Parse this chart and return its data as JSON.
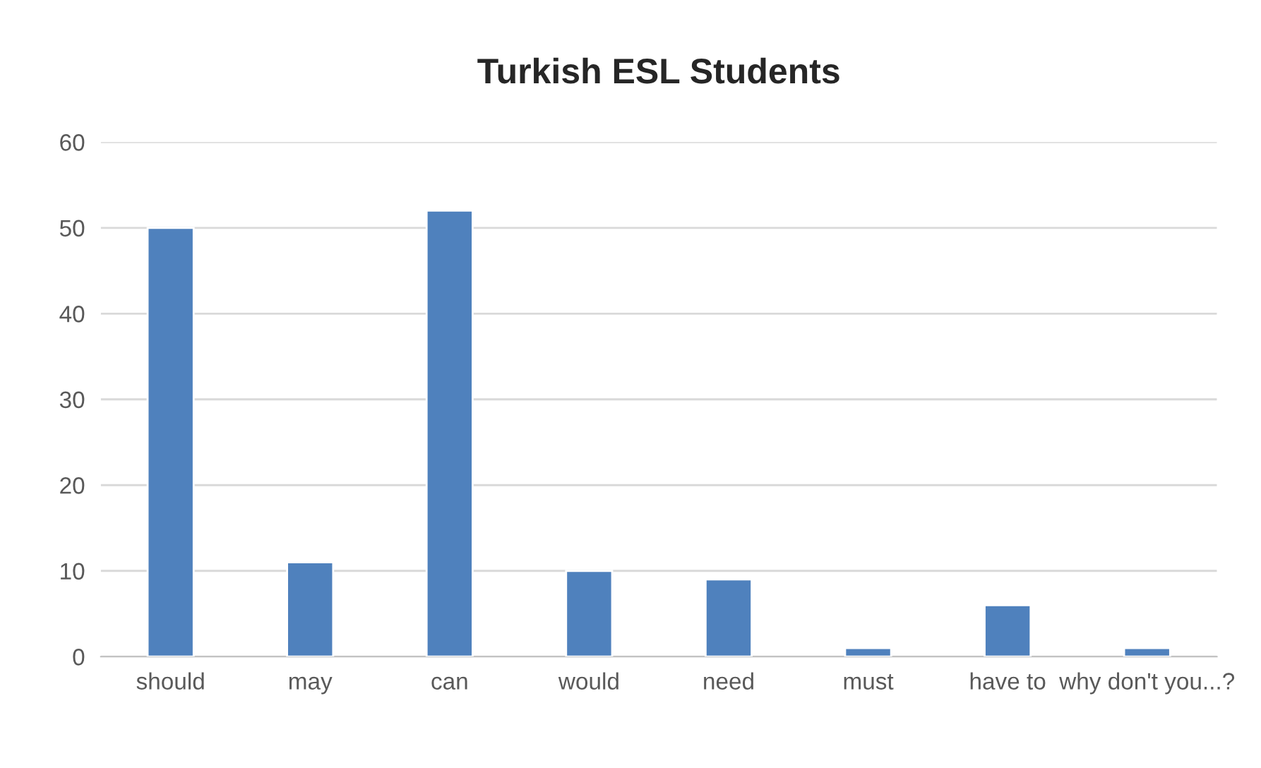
{
  "chart_data": {
    "type": "bar",
    "title": "Turkish ESL Students",
    "categories": [
      "should",
      "may",
      "can",
      "would",
      "need",
      "must",
      "have to",
      "why don't you...?"
    ],
    "values": [
      50,
      11,
      52,
      10,
      9,
      1,
      6,
      1
    ],
    "color": "#4f81bd",
    "ylim": [
      0,
      60
    ],
    "yticks": [
      0,
      10,
      20,
      30,
      40,
      50,
      60
    ],
    "grid": "y"
  }
}
